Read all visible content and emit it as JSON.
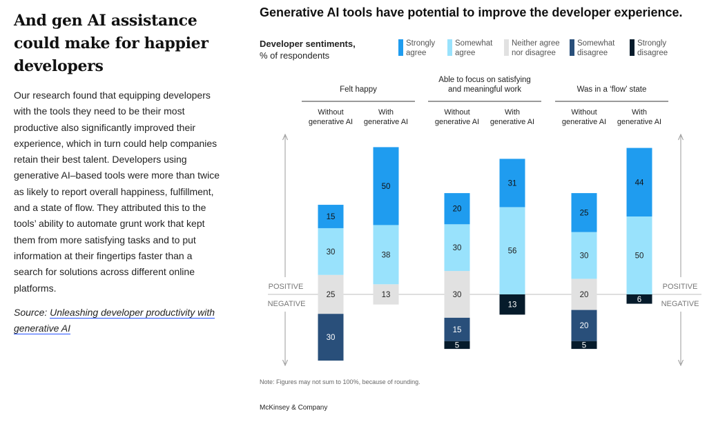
{
  "article": {
    "headline": "And gen AI assistance could make for happier developers",
    "body": "Our research found that equipping developers with the tools they need to be their most productive also significantly improved their experience, which in turn could help companies retain their best talent. Developers using generative AI–based tools were more than twice as likely to report overall happiness, fulfillment, and a state of flow. They attributed this to the tools’ ability to automate grunt work that kept them from more satisfying tasks and to put information at their fingertips faster than a search for solutions across different online platforms.",
    "source_label": "Source:",
    "source_link": "Unleashing developer productivity with generative AI"
  },
  "chart": {
    "title": "Generative AI tools have potential to improve the developer experience.",
    "sentiment_label_bold": "Developer sentiments,",
    "sentiment_label_unit": "% of respondents",
    "positive_label": "POSITIVE",
    "negative_label": "NEGATIVE",
    "note": "Note: Figures may not sum to 100%, because of rounding.",
    "brand": "McKinsey & Company"
  },
  "chart_data": {
    "type": "bar",
    "stacked": "diverging",
    "title": "Generative AI tools have potential to improve the developer experience.",
    "unit": "% of respondents",
    "legend": [
      {
        "name": "Strongly agree",
        "color": "#1f9cef"
      },
      {
        "name": "Somewhat agree",
        "color": "#99e2fc"
      },
      {
        "name": "Neither agree nor disagree",
        "color": "#e1e1e1"
      },
      {
        "name": "Somewhat disagree",
        "color": "#294f7a"
      },
      {
        "name": "Strongly disagree",
        "color": "#061b2b"
      }
    ],
    "groups": [
      {
        "title": "Felt happy",
        "bars": [
          {
            "label": "Without generative AI",
            "strongly_agree": 15,
            "somewhat_agree": 30,
            "neither": 25,
            "somewhat_disagree": 30,
            "strongly_disagree": 0
          },
          {
            "label": "With generative AI",
            "strongly_agree": 50,
            "somewhat_agree": 38,
            "neither": 13,
            "somewhat_disagree": 0,
            "strongly_disagree": 0
          }
        ]
      },
      {
        "title": "Able to focus on satisfying and meaningful work",
        "bars": [
          {
            "label": "Without generative AI",
            "strongly_agree": 20,
            "somewhat_agree": 30,
            "neither": 30,
            "somewhat_disagree": 15,
            "strongly_disagree": 5
          },
          {
            "label": "With generative AI",
            "strongly_agree": 31,
            "somewhat_agree": 56,
            "neither": 0,
            "somewhat_disagree": 0,
            "strongly_disagree": 13
          }
        ]
      },
      {
        "title": "Was in a ‘flow’ state",
        "bars": [
          {
            "label": "Without generative AI",
            "strongly_agree": 25,
            "somewhat_agree": 30,
            "neither": 20,
            "somewhat_disagree": 20,
            "strongly_disagree": 5
          },
          {
            "label": "With generative AI",
            "strongly_agree": 44,
            "somewhat_agree": 50,
            "neither": 0,
            "somewhat_disagree": 0,
            "strongly_disagree": 6
          }
        ]
      }
    ]
  }
}
